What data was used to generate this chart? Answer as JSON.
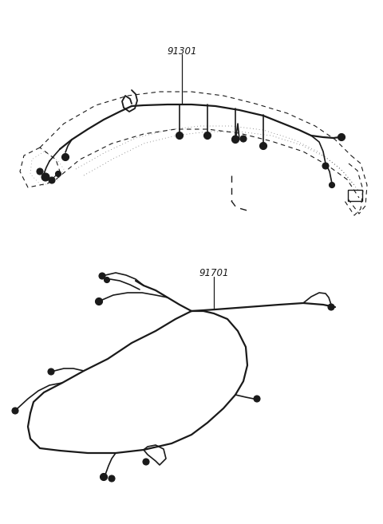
{
  "background_color": "#ffffff",
  "label_91301": "91301",
  "label_91701": "91701",
  "line_color": "#1a1a1a",
  "lw_main": 1.6,
  "lw_wire": 1.2,
  "lw_dash": 0.8,
  "fontsize_label": 8.5
}
